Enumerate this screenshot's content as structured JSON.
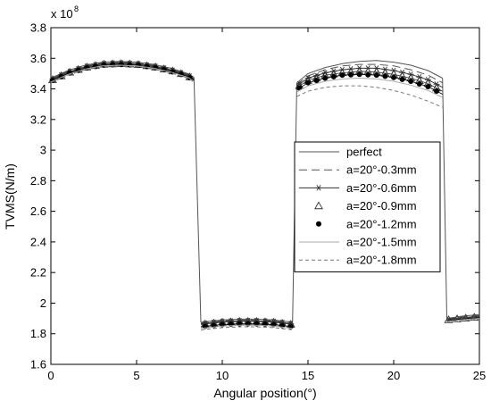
{
  "chart_data": {
    "type": "line",
    "xlabel": "Angular position(°)",
    "ylabel": "TVMS(N/m)",
    "xlim": [
      0,
      25
    ],
    "ylim": [
      1.6,
      3.8
    ],
    "y_multiplier": {
      "base": "x 10",
      "exponent": "8"
    },
    "xticks": [
      "0",
      "5",
      "10",
      "15",
      "20",
      "25"
    ],
    "yticks": [
      "1.6",
      "1.8",
      "2",
      "2.2",
      "2.4",
      "2.6",
      "2.8",
      "3",
      "3.2",
      "3.4",
      "3.6",
      "3.8"
    ],
    "grid": false,
    "legend_position": "right-middle",
    "series": [
      {
        "name": "perfect",
        "style": "solid",
        "color": "#555555",
        "segments": [
          {
            "x": [
              0,
              1,
              2,
              3,
              4,
              5,
              6,
              7,
              8,
              8.35
            ],
            "y": [
              3.47,
              3.52,
              3.555,
              3.575,
              3.58,
              3.575,
              3.56,
              3.535,
              3.5,
              3.475
            ]
          },
          {
            "x": [
              8.35,
              8.75
            ],
            "y": [
              3.475,
              1.875
            ]
          },
          {
            "x": [
              8.75,
              10,
              11,
              12,
              13,
              14.1
            ],
            "y": [
              1.875,
              1.89,
              1.895,
              1.895,
              1.89,
              1.875
            ]
          },
          {
            "x": [
              14.1,
              14.35
            ],
            "y": [
              1.875,
              3.44
            ]
          },
          {
            "x": [
              14.35,
              15,
              16,
              17,
              18,
              19,
              20,
              21,
              22,
              22.85
            ],
            "y": [
              3.44,
              3.5,
              3.54,
              3.565,
              3.58,
              3.585,
              3.575,
              3.555,
              3.52,
              3.47
            ]
          },
          {
            "x": [
              22.85,
              23.1
            ],
            "y": [
              3.47,
              1.9
            ]
          },
          {
            "x": [
              23.1,
              24,
              25
            ],
            "y": [
              1.9,
              1.915,
              1.925
            ]
          }
        ]
      },
      {
        "name": "a=20°-0.3mm",
        "style": "longdash",
        "color": "#555555",
        "segments": [
          {
            "x": [
              0,
              1,
              2,
              3,
              4,
              5,
              6,
              7,
              8,
              8.35
            ],
            "y": [
              3.465,
              3.515,
              3.55,
              3.57,
              3.575,
              3.57,
              3.555,
              3.53,
              3.495,
              3.47
            ]
          },
          {
            "x": [
              8.75,
              10,
              11,
              12,
              13,
              14.1
            ],
            "y": [
              1.87,
              1.885,
              1.89,
              1.89,
              1.885,
              1.87
            ]
          },
          {
            "x": [
              14.35,
              15,
              16,
              17,
              18,
              19,
              20,
              21,
              22,
              22.85
            ],
            "y": [
              3.43,
              3.485,
              3.525,
              3.55,
              3.56,
              3.56,
              3.55,
              3.525,
              3.49,
              3.44
            ]
          },
          {
            "x": [
              23.1,
              24,
              25
            ],
            "y": [
              1.9,
              1.91,
              1.92
            ]
          }
        ]
      },
      {
        "name": "a=20°-0.6mm",
        "style": "star",
        "color": "#333333",
        "markers_x": [
          0.1,
          0.6,
          1.1,
          1.6,
          2.1,
          2.6,
          3.1,
          3.6,
          4.1,
          4.6,
          5.1,
          5.6,
          6.1,
          6.6,
          7.1,
          7.6,
          8.1,
          9,
          9.5,
          10,
          10.5,
          11,
          11.5,
          12,
          12.5,
          13,
          13.5,
          14,
          14.5,
          15,
          15.5,
          16,
          16.5,
          17,
          17.5,
          18,
          18.5,
          19,
          19.5,
          20,
          20.5,
          21,
          21.5,
          22,
          22.5
        ],
        "segments": [
          {
            "x": [
              0,
              1,
              2,
              3,
              4,
              5,
              6,
              7,
              8,
              8.35
            ],
            "y": [
              3.46,
              3.51,
              3.545,
              3.565,
              3.57,
              3.565,
              3.55,
              3.525,
              3.49,
              3.465
            ]
          },
          {
            "x": [
              8.75,
              10,
              11,
              12,
              13,
              14.1
            ],
            "y": [
              1.865,
              1.88,
              1.885,
              1.885,
              1.88,
              1.865
            ]
          },
          {
            "x": [
              14.35,
              15,
              16,
              17,
              18,
              19,
              20,
              21,
              22,
              22.85
            ],
            "y": [
              3.42,
              3.47,
              3.505,
              3.525,
              3.535,
              3.535,
              3.52,
              3.495,
              3.46,
              3.41
            ]
          },
          {
            "x": [
              23.1,
              24,
              25
            ],
            "y": [
              1.895,
              1.905,
              1.915
            ]
          }
        ]
      },
      {
        "name": "a=20°-0.9mm",
        "style": "triangle",
        "color": "#333333",
        "markers_x": [
          0.1,
          0.6,
          1.1,
          1.6,
          2.1,
          2.6,
          3.1,
          3.6,
          4.1,
          4.6,
          5.1,
          5.6,
          6.1,
          6.6,
          7.1,
          7.6,
          8.1,
          9,
          9.5,
          10,
          10.5,
          11,
          11.5,
          12,
          12.5,
          13,
          13.5,
          14,
          14.5,
          15,
          15.5,
          16,
          16.5,
          17,
          17.5,
          18,
          18.5,
          19,
          19.5,
          20,
          20.5,
          21,
          21.5,
          22,
          22.5,
          23.2,
          23.7,
          24.2,
          24.7
        ],
        "segments": [
          {
            "x": [
              0,
              1,
              2,
              3,
              4,
              5,
              6,
              7,
              8,
              8.35
            ],
            "y": [
              3.455,
              3.505,
              3.54,
              3.56,
              3.565,
              3.56,
              3.545,
              3.52,
              3.485,
              3.46
            ]
          },
          {
            "x": [
              8.75,
              10,
              11,
              12,
              13,
              14.1
            ],
            "y": [
              1.86,
              1.875,
              1.88,
              1.88,
              1.875,
              1.86
            ]
          },
          {
            "x": [
              14.35,
              15,
              16,
              17,
              18,
              19,
              20,
              21,
              22,
              22.85
            ],
            "y": [
              3.41,
              3.455,
              3.49,
              3.505,
              3.515,
              3.51,
              3.495,
              3.47,
              3.435,
              3.385
            ]
          },
          {
            "x": [
              23.1,
              24,
              25
            ],
            "y": [
              1.89,
              1.9,
              1.91
            ]
          }
        ]
      },
      {
        "name": "a=20°-1.2mm",
        "style": "dot",
        "color": "#000000",
        "markers_x": [
          0.1,
          0.6,
          1.1,
          1.6,
          2.1,
          2.6,
          3.1,
          3.6,
          4.1,
          4.6,
          5.1,
          5.6,
          6.1,
          6.6,
          7.1,
          7.6,
          8.1,
          9,
          9.5,
          10,
          10.5,
          11,
          11.5,
          12,
          12.5,
          13,
          13.5,
          14,
          14.5,
          15,
          15.5,
          16,
          16.5,
          17,
          17.5,
          18,
          18.5,
          19,
          19.5,
          20,
          20.5,
          21,
          21.5,
          22,
          22.5
        ],
        "segments": [
          {
            "x": [
              0,
              1,
              2,
              3,
              4,
              5,
              6,
              7,
              8,
              8.35
            ],
            "y": [
              3.45,
              3.5,
              3.535,
              3.555,
              3.56,
              3.555,
              3.54,
              3.515,
              3.48,
              3.455
            ]
          },
          {
            "x": [
              8.75,
              10,
              11,
              12,
              13,
              14.1
            ],
            "y": [
              1.845,
              1.86,
              1.865,
              1.865,
              1.86,
              1.845
            ]
          },
          {
            "x": [
              14.35,
              15,
              16,
              17,
              18,
              19,
              20,
              21,
              22,
              22.85
            ],
            "y": [
              3.395,
              3.44,
              3.47,
              3.49,
              3.495,
              3.49,
              3.475,
              3.45,
              3.415,
              3.365
            ]
          },
          {
            "x": [
              23.1,
              24,
              25
            ],
            "y": [
              1.885,
              1.895,
              1.905
            ]
          }
        ]
      },
      {
        "name": "a=20°-1.5mm",
        "style": "solid-light",
        "color": "#aaaaaa",
        "segments": [
          {
            "x": [
              0,
              1,
              2,
              3,
              4,
              5,
              6,
              7,
              8,
              8.35
            ],
            "y": [
              3.445,
              3.495,
              3.53,
              3.55,
              3.555,
              3.55,
              3.535,
              3.51,
              3.475,
              3.45
            ]
          },
          {
            "x": [
              8.75,
              10,
              11,
              12,
              13,
              14.1
            ],
            "y": [
              1.835,
              1.85,
              1.855,
              1.855,
              1.85,
              1.835
            ]
          },
          {
            "x": [
              14.35,
              15,
              16,
              17,
              18,
              19,
              20,
              21,
              22,
              22.85
            ],
            "y": [
              3.38,
              3.42,
              3.45,
              3.465,
              3.47,
              3.465,
              3.45,
              3.425,
              3.39,
              3.345
            ]
          },
          {
            "x": [
              23.1,
              24,
              25
            ],
            "y": [
              1.88,
              1.89,
              1.9
            ]
          }
        ]
      },
      {
        "name": "a=20°-1.8mm",
        "style": "shortdash",
        "color": "#777777",
        "segments": [
          {
            "x": [
              0,
              1,
              2,
              3,
              4,
              5,
              6,
              7,
              8,
              8.35
            ],
            "y": [
              3.44,
              3.49,
              3.525,
              3.545,
              3.55,
              3.545,
              3.53,
              3.505,
              3.47,
              3.445
            ]
          },
          {
            "x": [
              8.75,
              10,
              11,
              12,
              13,
              14.1
            ],
            "y": [
              1.825,
              1.84,
              1.845,
              1.845,
              1.84,
              1.825
            ]
          },
          {
            "x": [
              14.35,
              15,
              16,
              17,
              18,
              19,
              20,
              21,
              22,
              22.85
            ],
            "y": [
              3.35,
              3.385,
              3.41,
              3.42,
              3.42,
              3.41,
              3.39,
              3.36,
              3.32,
              3.28
            ]
          },
          {
            "x": [
              23.1,
              24,
              25
            ],
            "y": [
              1.875,
              1.885,
              1.895
            ]
          }
        ]
      }
    ]
  }
}
